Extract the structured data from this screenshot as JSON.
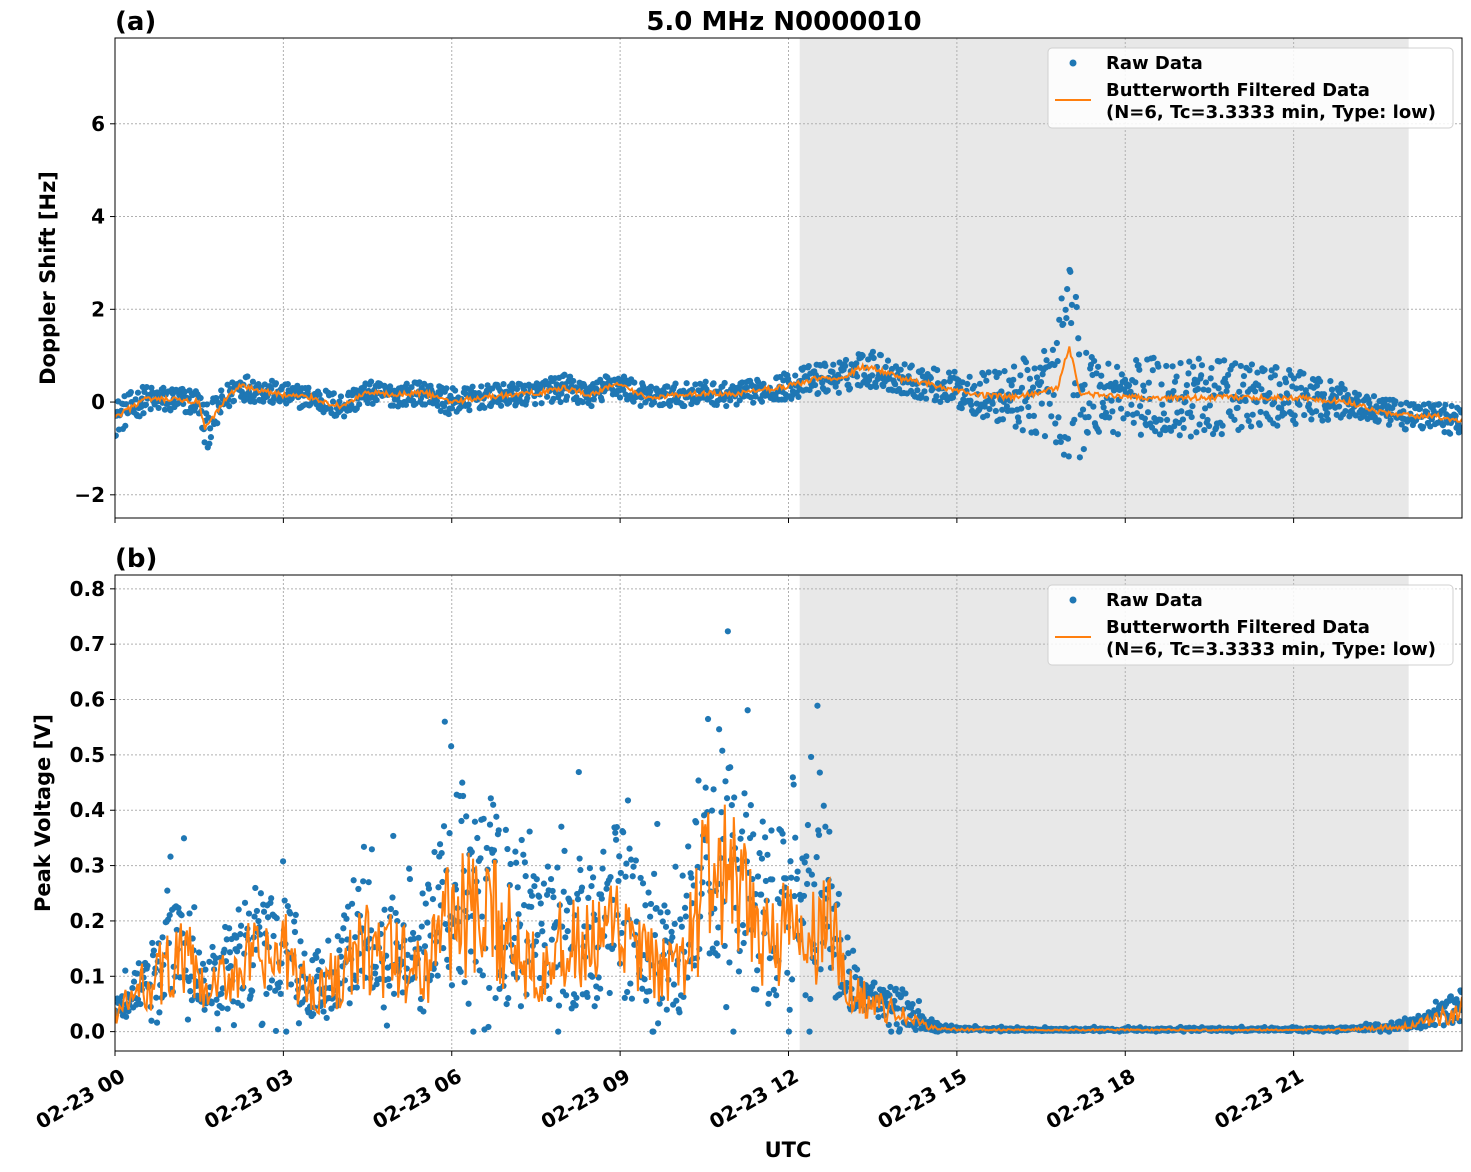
{
  "figure": {
    "title": "5.0 MHz N0000010",
    "xlabel": "UTC"
  },
  "chart_data": [
    {
      "type": "scatter",
      "panel_label": "(a)",
      "ylabel": "Doppler Shift [Hz]",
      "xlim_hours": [
        0,
        24
      ],
      "ylim": [
        -2.5,
        7.85
      ],
      "yticks": [
        -2,
        0,
        2,
        4,
        6
      ],
      "ytick_labels": [
        "−2",
        "0",
        "2",
        "4",
        "6"
      ],
      "xtick_hours": [
        0,
        3,
        6,
        9,
        12,
        15,
        18,
        21
      ],
      "xtick_labels": [
        "02-23 00",
        "02-23 03",
        "02-23 06",
        "02-23 09",
        "02-23 12",
        "02-23 15",
        "02-23 18",
        "02-23 21"
      ],
      "shaded_region_hours": [
        12.2,
        23.05
      ],
      "grid": true,
      "legend_position": "top-right",
      "series": [
        {
          "name": "Raw Data",
          "style": "points",
          "color": "#1f77b4",
          "x_hours": [
            0,
            0.5,
            1.0,
            1.5,
            1.6,
            2.0,
            2.2,
            3.0,
            3.5,
            4.0,
            4.5,
            5.0,
            5.5,
            6.0,
            6.5,
            7.0,
            7.5,
            8.0,
            8.5,
            8.9,
            9.5,
            10.0,
            10.5,
            11.0,
            11.5,
            12.0,
            12.5,
            13.0,
            13.3,
            13.6,
            14.0,
            14.5,
            15.0,
            15.5,
            16.0,
            16.5,
            16.8,
            17.0,
            17.2,
            17.5,
            18.0,
            18.5,
            19.0,
            19.5,
            20.0,
            20.5,
            21.0,
            21.5,
            22.0,
            22.5,
            23.0,
            23.5,
            24.0
          ],
          "center": [
            -0.35,
            0.05,
            0.05,
            0.0,
            -0.6,
            0.1,
            0.35,
            0.15,
            0.1,
            -0.1,
            0.2,
            0.15,
            0.2,
            0.0,
            0.1,
            0.15,
            0.2,
            0.3,
            0.15,
            0.4,
            0.1,
            0.15,
            0.2,
            0.15,
            0.25,
            0.35,
            0.5,
            0.55,
            0.75,
            0.7,
            0.5,
            0.4,
            0.25,
            0.15,
            0.1,
            0.2,
            0.3,
            1.2,
            0.2,
            0.15,
            0.1,
            0.1,
            0.1,
            0.1,
            0.1,
            0.1,
            0.1,
            0.05,
            0.0,
            -0.2,
            -0.3,
            -0.3,
            -0.4
          ],
          "spread": [
            0.4,
            0.3,
            0.3,
            0.3,
            0.5,
            0.3,
            0.3,
            0.25,
            0.25,
            0.3,
            0.25,
            0.25,
            0.25,
            0.3,
            0.25,
            0.25,
            0.25,
            0.3,
            0.25,
            0.3,
            0.25,
            0.25,
            0.25,
            0.25,
            0.25,
            0.3,
            0.35,
            0.35,
            0.4,
            0.4,
            0.35,
            0.35,
            0.4,
            0.5,
            0.7,
            1.0,
            1.2,
            2.6,
            1.4,
            0.9,
            0.8,
            0.9,
            0.9,
            0.8,
            0.8,
            0.7,
            0.6,
            0.45,
            0.35,
            0.3,
            0.3,
            0.3,
            0.35
          ]
        },
        {
          "name": "Butterworth Filtered Data\n(N=6, Tc=3.3333 min, Type: low)",
          "style": "line",
          "color": "#ff7f0e",
          "x_hours": [
            0,
            0.5,
            1.0,
            1.5,
            1.6,
            2.0,
            2.2,
            3.0,
            3.5,
            4.0,
            4.5,
            5.0,
            5.5,
            6.0,
            6.5,
            7.0,
            7.5,
            8.0,
            8.5,
            8.9,
            9.5,
            10.0,
            10.5,
            11.0,
            11.5,
            12.0,
            12.5,
            13.0,
            13.3,
            13.6,
            14.0,
            14.5,
            15.0,
            15.5,
            16.0,
            16.5,
            16.8,
            17.0,
            17.2,
            17.5,
            18.0,
            18.5,
            19.0,
            19.5,
            20.0,
            20.5,
            21.0,
            21.5,
            22.0,
            22.5,
            23.0,
            23.5,
            24.0
          ],
          "values": [
            -0.35,
            0.05,
            0.05,
            0.0,
            -0.6,
            0.1,
            0.35,
            0.15,
            0.1,
            -0.1,
            0.2,
            0.15,
            0.2,
            0.0,
            0.1,
            0.15,
            0.2,
            0.3,
            0.15,
            0.4,
            0.1,
            0.15,
            0.2,
            0.15,
            0.25,
            0.35,
            0.5,
            0.55,
            0.75,
            0.7,
            0.5,
            0.4,
            0.25,
            0.15,
            0.1,
            0.2,
            0.3,
            1.2,
            0.2,
            0.15,
            0.1,
            0.1,
            0.1,
            0.1,
            0.1,
            0.1,
            0.1,
            0.05,
            0.0,
            -0.2,
            -0.3,
            -0.3,
            -0.4
          ]
        }
      ]
    },
    {
      "type": "scatter",
      "panel_label": "(b)",
      "ylabel": "Peak Voltage [V]",
      "xlim_hours": [
        0,
        24
      ],
      "ylim": [
        -0.035,
        0.825
      ],
      "yticks": [
        0.0,
        0.1,
        0.2,
        0.3,
        0.4,
        0.5,
        0.6,
        0.7,
        0.8
      ],
      "ytick_labels": [
        "0.0",
        "0.1",
        "0.2",
        "0.3",
        "0.4",
        "0.5",
        "0.6",
        "0.7",
        "0.8"
      ],
      "xtick_hours": [
        0,
        3,
        6,
        9,
        12,
        15,
        18,
        21
      ],
      "xtick_labels": [
        "02-23 00",
        "02-23 03",
        "02-23 06",
        "02-23 09",
        "02-23 12",
        "02-23 15",
        "02-23 18",
        "02-23 21"
      ],
      "shaded_region_hours": [
        12.2,
        23.05
      ],
      "grid": true,
      "legend_position": "top-right",
      "series": [
        {
          "name": "Raw Data",
          "style": "points",
          "color": "#1f77b4",
          "x_hours": [
            0,
            0.5,
            1.0,
            1.3,
            1.6,
            2.0,
            2.3,
            2.7,
            3.0,
            3.5,
            4.0,
            4.5,
            5.0,
            5.5,
            5.8,
            6.2,
            6.5,
            6.8,
            7.2,
            7.5,
            8.0,
            8.5,
            9.0,
            9.5,
            10.0,
            10.4,
            10.6,
            11.0,
            11.3,
            11.6,
            12.0,
            12.4,
            12.7,
            13.0,
            13.5,
            14.0,
            14.5,
            15.0,
            16.0,
            17.0,
            18.0,
            19.0,
            20.0,
            21.0,
            22.0,
            23.0,
            23.5,
            24.0
          ],
          "center": [
            0.03,
            0.08,
            0.12,
            0.13,
            0.06,
            0.1,
            0.13,
            0.12,
            0.14,
            0.07,
            0.1,
            0.15,
            0.13,
            0.1,
            0.2,
            0.22,
            0.18,
            0.2,
            0.15,
            0.13,
            0.15,
            0.15,
            0.18,
            0.12,
            0.1,
            0.22,
            0.3,
            0.25,
            0.2,
            0.18,
            0.18,
            0.15,
            0.22,
            0.08,
            0.05,
            0.03,
            0.008,
            0.004,
            0.003,
            0.003,
            0.003,
            0.003,
            0.003,
            0.003,
            0.004,
            0.01,
            0.02,
            0.04
          ],
          "spread": [
            0.03,
            0.05,
            0.1,
            0.12,
            0.05,
            0.1,
            0.12,
            0.12,
            0.14,
            0.07,
            0.1,
            0.14,
            0.14,
            0.12,
            0.2,
            0.24,
            0.2,
            0.25,
            0.18,
            0.15,
            0.18,
            0.18,
            0.2,
            0.14,
            0.12,
            0.24,
            0.3,
            0.25,
            0.22,
            0.2,
            0.2,
            0.18,
            0.25,
            0.06,
            0.04,
            0.05,
            0.01,
            0.004,
            0.003,
            0.003,
            0.003,
            0.003,
            0.003,
            0.003,
            0.004,
            0.01,
            0.02,
            0.04
          ]
        },
        {
          "name": "Butterworth Filtered Data\n(N=6, Tc=3.3333 min, Type: low)",
          "style": "line",
          "color": "#ff7f0e",
          "x_hours": [
            0,
            0.5,
            1.0,
            1.3,
            1.6,
            2.0,
            2.3,
            2.7,
            3.0,
            3.5,
            4.0,
            4.5,
            5.0,
            5.5,
            5.8,
            6.2,
            6.5,
            6.8,
            7.2,
            7.5,
            8.0,
            8.5,
            9.0,
            9.5,
            10.0,
            10.4,
            10.6,
            11.0,
            11.3,
            11.6,
            12.0,
            12.4,
            12.7,
            13.0,
            13.5,
            14.0,
            14.5,
            15.0,
            16.0,
            17.0,
            18.0,
            19.0,
            20.0,
            21.0,
            22.0,
            23.0,
            23.5,
            24.0
          ],
          "values": [
            0.03,
            0.08,
            0.12,
            0.13,
            0.06,
            0.1,
            0.13,
            0.12,
            0.14,
            0.07,
            0.1,
            0.15,
            0.13,
            0.1,
            0.2,
            0.22,
            0.18,
            0.2,
            0.15,
            0.13,
            0.15,
            0.15,
            0.18,
            0.12,
            0.1,
            0.22,
            0.3,
            0.25,
            0.2,
            0.18,
            0.18,
            0.15,
            0.22,
            0.08,
            0.05,
            0.03,
            0.008,
            0.004,
            0.003,
            0.003,
            0.003,
            0.003,
            0.003,
            0.003,
            0.004,
            0.01,
            0.02,
            0.04
          ]
        }
      ]
    }
  ]
}
